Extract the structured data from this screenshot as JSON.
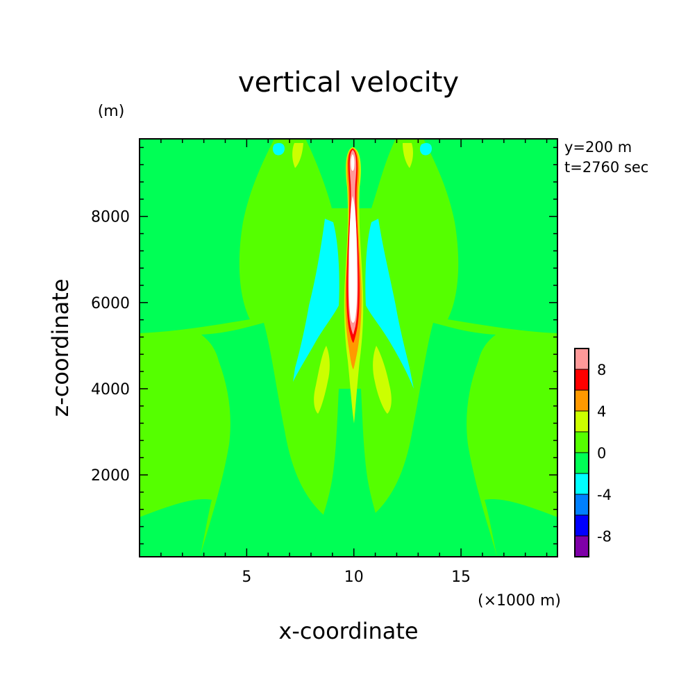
{
  "chart_data": {
    "type": "heatmap",
    "title": "vertical velocity",
    "xlabel": "x-coordinate",
    "ylabel": "z-coordinate",
    "xunit": "(×1000 m)",
    "yunit": "(m)",
    "annotations": [
      "y=200 m",
      "t=2760 sec"
    ],
    "xlim": [
      0,
      19.5
    ],
    "ylim": [
      100,
      9800
    ],
    "x_ticks": [
      {
        "value": 5,
        "label": "5"
      },
      {
        "value": 10,
        "label": "10"
      },
      {
        "value": 15,
        "label": "15"
      }
    ],
    "y_ticks": [
      {
        "value": 2000,
        "label": "2000"
      },
      {
        "value": 4000,
        "label": "4000"
      },
      {
        "value": 6000,
        "label": "6000"
      },
      {
        "value": 8000,
        "label": "8000"
      }
    ],
    "colorbar": {
      "placement": "right",
      "levels": [
        -10,
        -8,
        -6,
        -4,
        -2,
        0,
        2,
        4,
        6,
        8,
        10
      ],
      "colors": [
        "#7f00a8",
        "#0000ff",
        "#0080ff",
        "#00ffff",
        "#00ff55",
        "#55ff00",
        "#ccff00",
        "#ff9900",
        "#ff0000",
        "#ff9999"
      ],
      "tick_labels": [
        {
          "value": 8,
          "label": "8"
        },
        {
          "value": 4,
          "label": "4"
        },
        {
          "value": 0,
          "label": "0"
        },
        {
          "value": -4,
          "label": "-4"
        },
        {
          "value": -8,
          "label": "-8"
        }
      ]
    },
    "features": [
      {
        "name": "background",
        "color": "#00ff55",
        "level": "-2 to 0"
      },
      {
        "name": "central updraft core",
        "x": 10.2,
        "z_range": [
          5200,
          9700
        ],
        "max_level": "8 to 10"
      },
      {
        "name": "updraft stem",
        "x": 10.2,
        "z_range": [
          3000,
          9700
        ],
        "level": "2 to 4"
      },
      {
        "name": "downdraft flanks",
        "x": [
          8.7,
          11.5
        ],
        "z_range": [
          4100,
          7800
        ],
        "level": "-4 to -2"
      },
      {
        "name": "side updrafts",
        "x": [
          9.0,
          11.5
        ],
        "z_range": [
          3400,
          5000
        ],
        "level": "2 to 4"
      }
    ]
  }
}
